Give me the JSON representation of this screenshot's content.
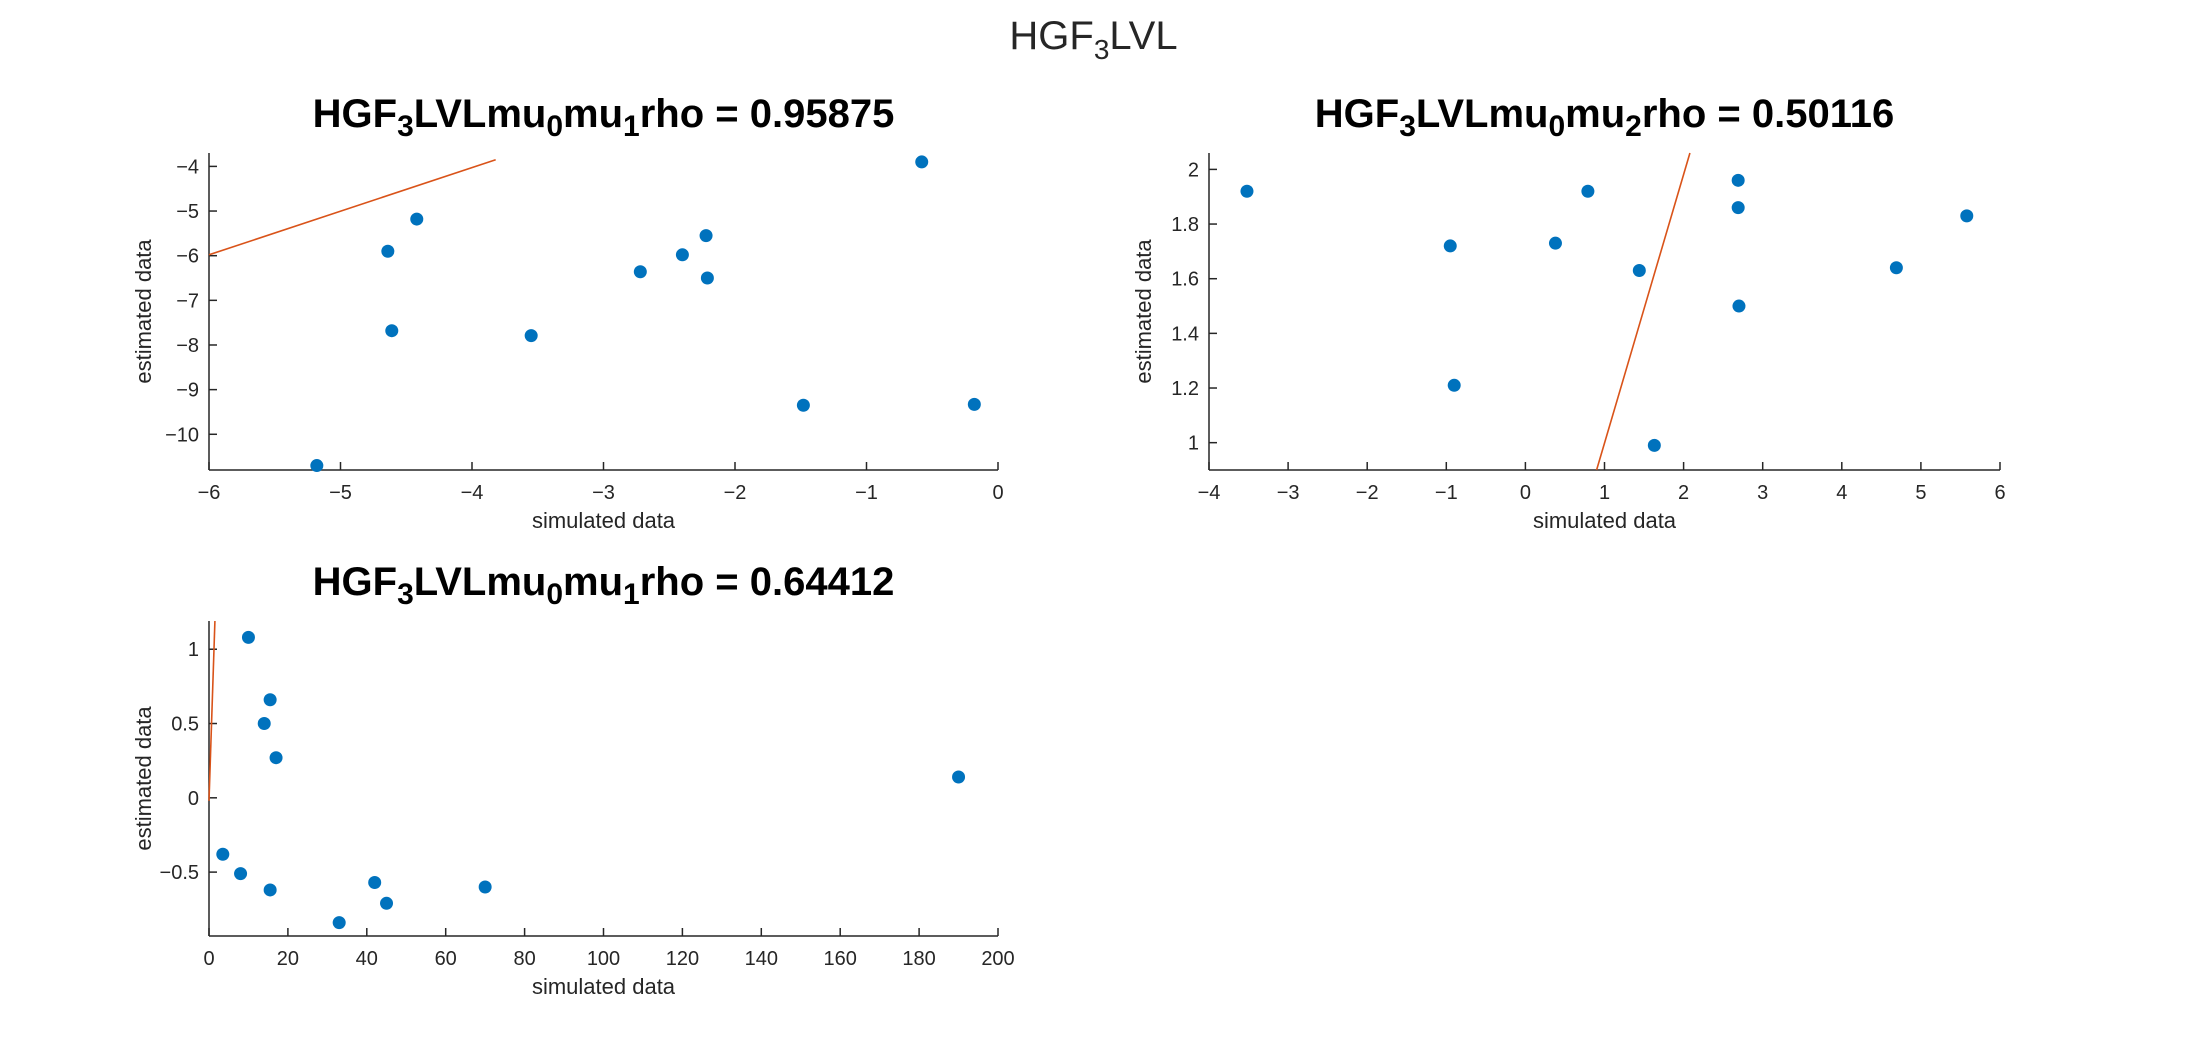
{
  "figure": {
    "title_main": "HGF",
    "title_sub": "3",
    "title_tail": "LVL"
  },
  "colors": {
    "points": "#0072BD",
    "fit_line": "#D95319",
    "axis": "#262626",
    "background": "#ffffff"
  },
  "chart_data": [
    {
      "type": "scatter",
      "title_parts": [
        {
          "text": "HGF",
          "sub": false
        },
        {
          "text": "3",
          "sub": true
        },
        {
          "text": "LVLmu",
          "sub": false
        },
        {
          "text": "0",
          "sub": true
        },
        {
          "text": "mu",
          "sub": false
        },
        {
          "text": "1",
          "sub": true
        },
        {
          "text": "rho = 0.95875",
          "sub": false
        }
      ],
      "xlabel": "simulated data",
      "ylabel": "estimated data",
      "xlim": [
        -6,
        0
      ],
      "ylim": [
        -10.8,
        -3.7
      ],
      "xticks": [
        -6,
        -5,
        -4,
        -3,
        -2,
        -1,
        0
      ],
      "yticks": [
        -4,
        -5,
        -6,
        -7,
        -8,
        -9,
        -10
      ],
      "points": [
        {
          "x": -5.18,
          "y": -10.7
        },
        {
          "x": -4.64,
          "y": -5.9
        },
        {
          "x": -4.61,
          "y": -7.68
        },
        {
          "x": -4.42,
          "y": -5.18
        },
        {
          "x": -3.55,
          "y": -7.79
        },
        {
          "x": -2.72,
          "y": -6.36
        },
        {
          "x": -2.4,
          "y": -5.98
        },
        {
          "x": -2.22,
          "y": -5.55
        },
        {
          "x": -2.21,
          "y": -6.5
        },
        {
          "x": -1.48,
          "y": -9.35
        },
        {
          "x": -0.58,
          "y": -3.9
        },
        {
          "x": -0.18,
          "y": -9.33
        }
      ],
      "fit_line": [
        {
          "x": -6.0,
          "y": -5.98
        },
        {
          "x": -3.82,
          "y": -3.85
        }
      ]
    },
    {
      "type": "scatter",
      "title_parts": [
        {
          "text": "HGF",
          "sub": false
        },
        {
          "text": "3",
          "sub": true
        },
        {
          "text": "LVLmu",
          "sub": false
        },
        {
          "text": "0",
          "sub": true
        },
        {
          "text": "mu",
          "sub": false
        },
        {
          "text": "2",
          "sub": true
        },
        {
          "text": "rho = 0.50116",
          "sub": false
        }
      ],
      "xlabel": "simulated data",
      "ylabel": "estimated data",
      "xlim": [
        -4,
        6
      ],
      "ylim": [
        0.9,
        2.06
      ],
      "xticks": [
        -4,
        -3,
        -2,
        -1,
        0,
        1,
        2,
        3,
        4,
        5,
        6
      ],
      "yticks": [
        2,
        1.8,
        1.6,
        1.4,
        1.2,
        1
      ],
      "points": [
        {
          "x": -3.52,
          "y": 1.92
        },
        {
          "x": -0.95,
          "y": 1.72
        },
        {
          "x": -0.9,
          "y": 1.21
        },
        {
          "x": 0.38,
          "y": 1.73
        },
        {
          "x": 0.79,
          "y": 1.92
        },
        {
          "x": 1.44,
          "y": 1.63
        },
        {
          "x": 1.63,
          "y": 0.99
        },
        {
          "x": 2.69,
          "y": 1.96
        },
        {
          "x": 2.69,
          "y": 1.86
        },
        {
          "x": 2.7,
          "y": 1.5
        },
        {
          "x": 4.69,
          "y": 1.64
        },
        {
          "x": 5.58,
          "y": 1.83
        }
      ],
      "fit_line": [
        {
          "x": 0.9,
          "y": 0.9
        },
        {
          "x": 2.08,
          "y": 2.06
        }
      ]
    },
    {
      "type": "scatter",
      "title_parts": [
        {
          "text": "HGF",
          "sub": false
        },
        {
          "text": "3",
          "sub": true
        },
        {
          "text": "LVLmu",
          "sub": false
        },
        {
          "text": "0",
          "sub": true
        },
        {
          "text": "mu",
          "sub": false
        },
        {
          "text": "1",
          "sub": true
        },
        {
          "text": "rho = 0.64412",
          "sub": false
        }
      ],
      "xlabel": "simulated data",
      "ylabel": "estimated data",
      "xlim": [
        0,
        200
      ],
      "ylim": [
        -0.93,
        1.19
      ],
      "xticks": [
        0,
        20,
        40,
        60,
        80,
        100,
        120,
        140,
        160,
        180,
        200
      ],
      "yticks": [
        1,
        0.5,
        0,
        -0.5
      ],
      "points": [
        {
          "x": 3.5,
          "y": -0.38
        },
        {
          "x": 8,
          "y": -0.51
        },
        {
          "x": 10,
          "y": 1.08
        },
        {
          "x": 14,
          "y": 0.5
        },
        {
          "x": 15.5,
          "y": 0.66
        },
        {
          "x": 15.5,
          "y": -0.62
        },
        {
          "x": 17,
          "y": 0.27
        },
        {
          "x": 33,
          "y": -0.84
        },
        {
          "x": 42,
          "y": -0.57
        },
        {
          "x": 45,
          "y": -0.71
        },
        {
          "x": 70,
          "y": -0.6
        },
        {
          "x": 190,
          "y": 0.14
        }
      ],
      "fit_line": [
        {
          "x": 0.0,
          "y": -0.02
        },
        {
          "x": 1.5,
          "y": 1.19
        }
      ]
    }
  ]
}
